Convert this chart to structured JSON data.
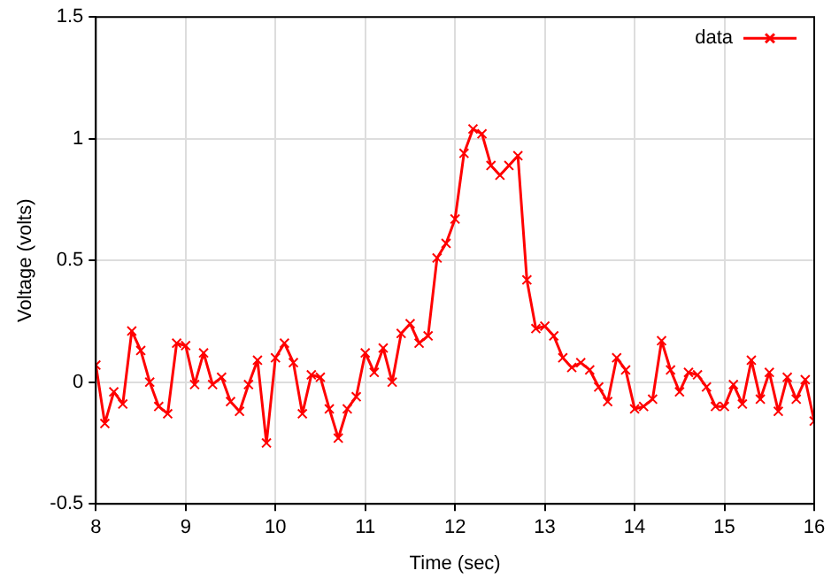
{
  "chart_data": {
    "type": "line",
    "xlabel": "Time (sec)",
    "ylabel": "Voltage (volts)",
    "x": [
      8.0,
      8.1,
      8.2,
      8.3,
      8.4,
      8.5,
      8.6,
      8.7,
      8.8,
      8.9,
      9.0,
      9.1,
      9.2,
      9.3,
      9.4,
      9.5,
      9.6,
      9.7,
      9.8,
      9.9,
      10.0,
      10.1,
      10.2,
      10.3,
      10.4,
      10.5,
      10.6,
      10.7,
      10.8,
      10.9,
      11.0,
      11.1,
      11.2,
      11.3,
      11.4,
      11.5,
      11.6,
      11.7,
      11.8,
      11.9,
      12.0,
      12.1,
      12.2,
      12.3,
      12.4,
      12.5,
      12.6,
      12.7,
      12.8,
      12.9,
      13.0,
      13.1,
      13.2,
      13.3,
      13.4,
      13.5,
      13.6,
      13.7,
      13.8,
      13.9,
      14.0,
      14.1,
      14.2,
      14.3,
      14.4,
      14.5,
      14.6,
      14.7,
      14.8,
      14.9,
      15.0,
      15.1,
      15.2,
      15.3,
      15.4,
      15.5,
      15.6,
      15.7,
      15.8,
      15.9,
      16.0
    ],
    "series": [
      {
        "name": "data",
        "color": "#ff0000",
        "values": [
          0.07,
          -0.17,
          -0.04,
          -0.09,
          0.21,
          0.13,
          0.0,
          -0.1,
          -0.13,
          0.16,
          0.15,
          -0.01,
          0.12,
          -0.01,
          0.02,
          -0.08,
          -0.12,
          -0.01,
          0.09,
          -0.25,
          0.1,
          0.16,
          0.08,
          -0.13,
          0.03,
          0.02,
          -0.11,
          -0.23,
          -0.11,
          -0.06,
          0.12,
          0.04,
          0.14,
          0.0,
          0.2,
          0.24,
          0.16,
          0.19,
          0.51,
          0.57,
          0.67,
          0.94,
          1.04,
          1.02,
          0.89,
          0.85,
          0.89,
          0.93,
          0.42,
          0.22,
          0.23,
          0.19,
          0.1,
          0.06,
          0.08,
          0.05,
          -0.02,
          -0.08,
          0.1,
          0.05,
          -0.11,
          -0.1,
          -0.07,
          0.17,
          0.05,
          -0.04,
          0.04,
          0.03,
          -0.02,
          -0.1,
          -0.1,
          -0.01,
          -0.09,
          0.09,
          -0.07,
          0.04,
          -0.12,
          0.02,
          -0.07,
          0.01,
          -0.16
        ]
      }
    ],
    "xlim": [
      8,
      16
    ],
    "xticks": [
      8,
      9,
      10,
      11,
      12,
      13,
      14,
      15,
      16
    ],
    "ylim": [
      -0.5,
      1.5
    ],
    "yticks": [
      -0.5,
      0,
      0.5,
      1,
      1.5
    ],
    "grid": true,
    "legend": "top right",
    "marker": "cross",
    "line_style": "solid"
  }
}
